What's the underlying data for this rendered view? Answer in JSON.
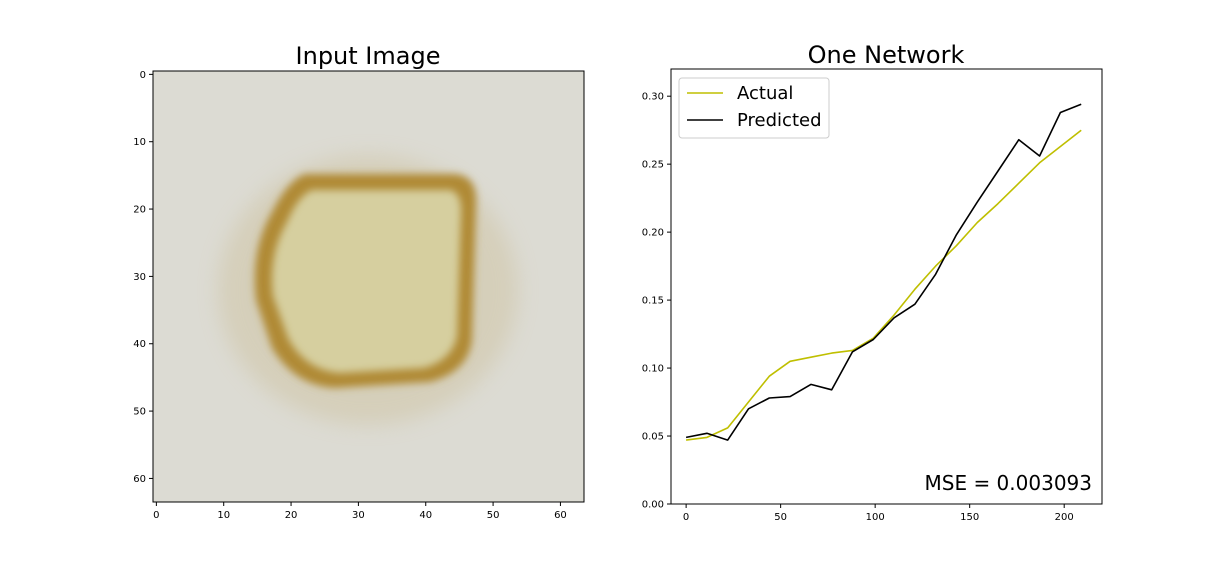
{
  "chart_data": [
    {
      "type": "image",
      "title": "Input Image",
      "xlim": [
        0,
        63
      ],
      "ylim": [
        0,
        63
      ],
      "x_ticks": [
        0,
        10,
        20,
        30,
        40,
        50,
        60
      ],
      "y_ticks": [
        0,
        10,
        20,
        30,
        40,
        50,
        60
      ],
      "y_inverted": true,
      "colors": {
        "background": "#dcdbd3",
        "ring": "#b08a35",
        "fill": "#d6cf9f",
        "shadow": "#c9b98d"
      }
    },
    {
      "type": "line",
      "title": "One Network",
      "xlim": [
        -8,
        220
      ],
      "ylim": [
        0,
        0.32
      ],
      "x_ticks": [
        0,
        50,
        100,
        150,
        200
      ],
      "y_ticks": [
        "0.00",
        "0.05",
        "0.10",
        "0.15",
        "0.20",
        "0.25",
        "0.30"
      ],
      "legend_position": "top-left",
      "series": [
        {
          "name": "Actual",
          "color": "#bfbf00",
          "x": [
            0,
            11,
            22,
            33,
            44,
            55,
            66,
            77,
            88,
            99,
            110,
            121,
            132,
            143,
            154,
            165,
            176,
            187,
            198,
            209
          ],
          "y": [
            0.047,
            0.049,
            0.056,
            0.075,
            0.094,
            0.105,
            0.108,
            0.111,
            0.113,
            0.122,
            0.139,
            0.158,
            0.175,
            0.19,
            0.207,
            0.221,
            0.236,
            0.251,
            0.263,
            0.275
          ]
        },
        {
          "name": "Predicted",
          "color": "#000000",
          "x": [
            0,
            11,
            22,
            33,
            44,
            55,
            66,
            77,
            88,
            99,
            110,
            121,
            132,
            143,
            154,
            165,
            176,
            187,
            198,
            209
          ],
          "y": [
            0.049,
            0.052,
            0.047,
            0.07,
            0.078,
            0.079,
            0.088,
            0.084,
            0.112,
            0.121,
            0.137,
            0.147,
            0.169,
            0.198,
            0.222,
            0.245,
            0.268,
            0.256,
            0.288,
            0.294
          ]
        }
      ],
      "annotation": "MSE = 0.003093"
    }
  ]
}
